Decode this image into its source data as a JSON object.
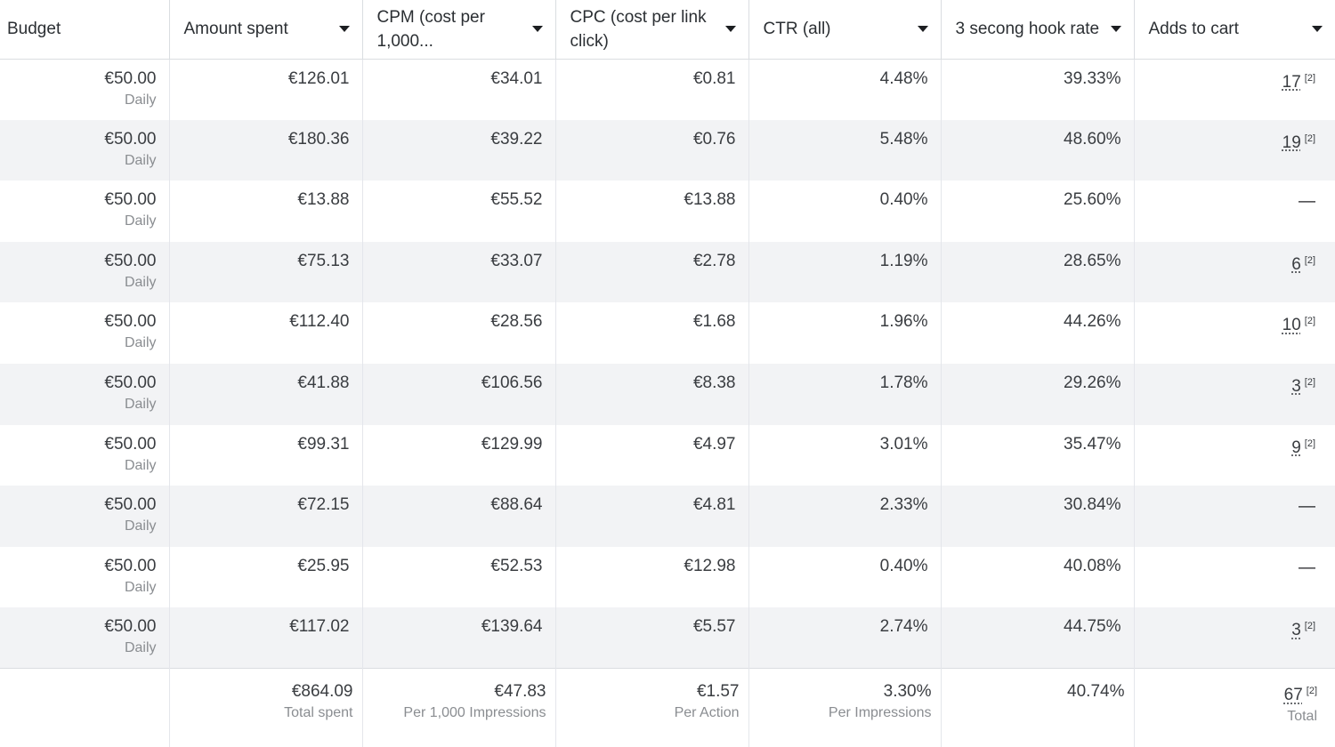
{
  "columns": [
    {
      "label": "Budget",
      "sortable": false
    },
    {
      "label": "Amount spent",
      "sortable": true
    },
    {
      "label": "CPM (cost per 1,000...",
      "sortable": true
    },
    {
      "label": "CPC (cost per link click)",
      "sortable": true
    },
    {
      "label": "CTR (all)",
      "sortable": true
    },
    {
      "label": "3 secong hook rate",
      "sortable": true
    },
    {
      "label": "Adds to cart",
      "sortable": true
    }
  ],
  "rows": [
    {
      "budget": "€50.00",
      "budget_period": "Daily",
      "amount_spent": "€126.01",
      "cpm": "€34.01",
      "cpc": "€0.81",
      "ctr": "4.48%",
      "hook_rate": "39.33%",
      "adds_to_cart": "17",
      "adds_note": "[2]"
    },
    {
      "budget": "€50.00",
      "budget_period": "Daily",
      "amount_spent": "€180.36",
      "cpm": "€39.22",
      "cpc": "€0.76",
      "ctr": "5.48%",
      "hook_rate": "48.60%",
      "adds_to_cart": "19",
      "adds_note": "[2]"
    },
    {
      "budget": "€50.00",
      "budget_period": "Daily",
      "amount_spent": "€13.88",
      "cpm": "€55.52",
      "cpc": "€13.88",
      "ctr": "0.40%",
      "hook_rate": "25.60%",
      "adds_to_cart": "—",
      "adds_note": ""
    },
    {
      "budget": "€50.00",
      "budget_period": "Daily",
      "amount_spent": "€75.13",
      "cpm": "€33.07",
      "cpc": "€2.78",
      "ctr": "1.19%",
      "hook_rate": "28.65%",
      "adds_to_cart": "6",
      "adds_note": "[2]"
    },
    {
      "budget": "€50.00",
      "budget_period": "Daily",
      "amount_spent": "€112.40",
      "cpm": "€28.56",
      "cpc": "€1.68",
      "ctr": "1.96%",
      "hook_rate": "44.26%",
      "adds_to_cart": "10",
      "adds_note": "[2]"
    },
    {
      "budget": "€50.00",
      "budget_period": "Daily",
      "amount_spent": "€41.88",
      "cpm": "€106.56",
      "cpc": "€8.38",
      "ctr": "1.78%",
      "hook_rate": "29.26%",
      "adds_to_cart": "3",
      "adds_note": "[2]"
    },
    {
      "budget": "€50.00",
      "budget_period": "Daily",
      "amount_spent": "€99.31",
      "cpm": "€129.99",
      "cpc": "€4.97",
      "ctr": "3.01%",
      "hook_rate": "35.47%",
      "adds_to_cart": "9",
      "adds_note": "[2]"
    },
    {
      "budget": "€50.00",
      "budget_period": "Daily",
      "amount_spent": "€72.15",
      "cpm": "€88.64",
      "cpc": "€4.81",
      "ctr": "2.33%",
      "hook_rate": "30.84%",
      "adds_to_cart": "—",
      "adds_note": ""
    },
    {
      "budget": "€50.00",
      "budget_period": "Daily",
      "amount_spent": "€25.95",
      "cpm": "€52.53",
      "cpc": "€12.98",
      "ctr": "0.40%",
      "hook_rate": "40.08%",
      "adds_to_cart": "—",
      "adds_note": ""
    },
    {
      "budget": "€50.00",
      "budget_period": "Daily",
      "amount_spent": "€117.02",
      "cpm": "€139.64",
      "cpc": "€5.57",
      "ctr": "2.74%",
      "hook_rate": "44.75%",
      "adds_to_cart": "3",
      "adds_note": "[2]"
    }
  ],
  "totals": {
    "amount_spent": "€864.09",
    "amount_spent_label": "Total spent",
    "cpm": "€47.83",
    "cpm_label": "Per 1,000 Impressions",
    "cpc": "€1.57",
    "cpc_label": "Per Action",
    "ctr": "3.30%",
    "ctr_label": "Per Impressions",
    "hook_rate": "40.74%",
    "adds_to_cart": "67",
    "adds_note": "[2]",
    "adds_label": "Total"
  },
  "icons": {
    "sort": "caret-down-icon"
  }
}
